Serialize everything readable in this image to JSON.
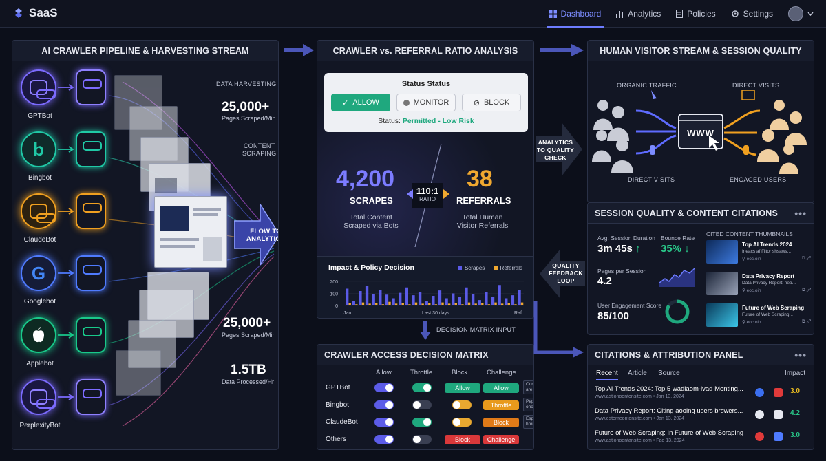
{
  "app": {
    "name": "SaaS"
  },
  "nav": [
    {
      "label": "Dashboard",
      "icon": "grid-icon"
    },
    {
      "label": "Analytics",
      "icon": "bar-chart-icon"
    },
    {
      "label": "Policies",
      "icon": "document-icon"
    },
    {
      "label": "Settings",
      "icon": "gear-icon"
    }
  ],
  "pipeline": {
    "title": "AI CRAWLER PIPELINE & HARVESTING STREAM",
    "bots": [
      {
        "name": "GPTBot",
        "color": "#7c6bff"
      },
      {
        "name": "Bingbot",
        "color": "#20c9a6"
      },
      {
        "name": "ClaudeBot",
        "color": "#f0a020"
      },
      {
        "name": "Googlebot",
        "color": "#4f7bff"
      },
      {
        "name": "Applebot",
        "color": "#19c98a"
      },
      {
        "name": "PerplexityBot",
        "color": "#7c6bff"
      }
    ],
    "tag_harvest": "DATA HARVESTING",
    "tag_scraping_1": "CONTENT",
    "tag_scraping_2": "SCRAPING",
    "stat1_value": "25,000+",
    "stat1_label": "Pages Scraped/Min",
    "stat2_value": "25,000+",
    "stat2_label": "Pages Scraped/Min",
    "stat3_value": "1.5TB",
    "stat3_label": "Data Processed/Hr",
    "flow_label_1": "FLOW TO",
    "flow_label_2": "ANALYTICS"
  },
  "ratio": {
    "title": "CRAWLER vs. REFERRAL RATIO ANALYSIS",
    "status_title": "Status Status",
    "buttons": [
      "ALLOW",
      "MONITOR",
      "BLOCK"
    ],
    "status_prefix": "Status:",
    "status_value": "Permitted - Low Risk",
    "scrapes_value": "4,200",
    "scrapes_label": "SCRAPES",
    "scrapes_caption_1": "Total Content",
    "scrapes_caption_2": "Scraped via Bots",
    "ratio_value": "110:1",
    "ratio_label": "RATIO",
    "referrals_value": "38",
    "referrals_label": "REFERRALS",
    "referrals_caption_1": "Total Human",
    "referrals_caption_2": "Visitor Referrals",
    "chart_title": "Impact & Policy Decision",
    "legend_scrapes": "Scrapes",
    "legend_referrals": "Referrals",
    "colors": {
      "scrapes": "#5b5be8",
      "referrals": "#f0a830"
    }
  },
  "chart_data": {
    "type": "bar",
    "title": "Impact & Policy Decision",
    "xlabel": "",
    "ylabel": "",
    "ylim": [
      0,
      200
    ],
    "yticks": [
      "200",
      "100",
      "0"
    ],
    "xticks": [
      "Jan",
      "Last 30 days",
      "Raf"
    ],
    "series": [
      {
        "name": "Scrapes",
        "values": [
          140,
          40,
          120,
          160,
          95,
          130,
          90,
          60,
          105,
          150,
          85,
          110,
          40,
          80,
          125,
          60,
          100,
          70,
          150,
          95,
          45,
          110,
          70,
          170,
          60,
          85,
          130
        ]
      },
      {
        "name": "Referrals",
        "values": [
          20,
          10,
          25,
          15,
          20,
          10,
          30,
          15,
          20,
          10,
          25,
          15,
          20,
          10,
          25,
          15,
          20,
          10,
          25,
          15,
          20,
          10,
          25,
          15,
          20,
          10,
          25
        ]
      }
    ]
  },
  "decision_label": "DECISION MATRIX INPUT",
  "analytics_label": [
    "ANALYTICS",
    "TO QUALITY",
    "CHECK"
  ],
  "feedback_label": [
    "QUALITY",
    "FEEDBACK",
    "LOOP"
  ],
  "matrix": {
    "title": "CRAWLER ACCESS DECISION MATRIX",
    "columns": [
      "Allow",
      "Throttle",
      "Block",
      "Challenge"
    ],
    "rows": [
      {
        "name": "GPTBot",
        "allow": true,
        "throttle": true,
        "block_label": "Allow",
        "block_color": "#1fa87e",
        "challenge_label": "Allow",
        "challenge_color": "#1fa87e",
        "note": "Current policies to are evable the rules"
      },
      {
        "name": "Bingbot",
        "allow": true,
        "throttle": false,
        "block_label": "",
        "block_color": "",
        "challenge_label": "Throttle",
        "challenge_color": "#e89a1c",
        "note": "Pepben siads to onomote the rules"
      },
      {
        "name": "ClaudeBot",
        "allow": true,
        "throttle": true,
        "block_label": "",
        "block_color": "",
        "challenge_label": "Block",
        "challenge_color": "#e07a18",
        "note": "Esplac slem lockips hrononlser rules"
      },
      {
        "name": "Others",
        "allow": true,
        "throttle": false,
        "block_label": "Block",
        "block_color": "#d9383a",
        "challenge_label": "Challenge",
        "challenge_color": "#d9383a",
        "note": ""
      }
    ]
  },
  "visitor": {
    "title": "HUMAN VISITOR STREAM & SESSION QUALITY",
    "organic": "ORGANIC TRAFFIC",
    "direct_top": "DIRECT VISITS",
    "direct_bottom": "DIRECT VISITS",
    "engaged": "ENGAGED USERS",
    "www": "WWW"
  },
  "session": {
    "title": "SESSION QUALITY & CONTENT CITATIONS",
    "avg_label": "Avg. Session Duration",
    "avg_value": "3m 45s",
    "bounce_label": "Bounce Rate",
    "bounce_value": "35%",
    "pages_label": "Pages per Session",
    "pages_value": "4.2",
    "engage_label": "User Engagement Score",
    "engage_value": "85/100",
    "engage_fraction": 0.85,
    "cited_title": "CITED CONTENT THUMBNAILS",
    "cited": [
      {
        "title": "Top AI Trends 2024",
        "sub": "Ineacs af ffiitor shsaws...",
        "link": "eoc.oin"
      },
      {
        "title": "Data Privacy Report",
        "sub": "Data Privacy Report: nea...",
        "link": "eoc.oin"
      },
      {
        "title": "Future of Web Scraping",
        "sub": "Future of Web Scraping...",
        "link": "eoc.oin"
      }
    ]
  },
  "citations": {
    "title": "CITATIONS & ATTRIBUTION PANEL",
    "tabs": [
      "Recent",
      "Article",
      "Source"
    ],
    "impact_label": "Impact",
    "rows": [
      {
        "title": "Top AI Trends 2024: Top 5 wadiaom-lvad Menting...",
        "sub": "www.astionoontonsite.com • Jan 13, 2024",
        "impact": "3.0",
        "impact_color": "#f0c020"
      },
      {
        "title": "Data Privacy Report: Citing aooing users brswers...",
        "sub": "www.estemeontonsite.com • Jan 13, 2024",
        "impact": "4.2",
        "impact_color": "#29c98a"
      },
      {
        "title": "Future of Web Scraping: In Future of Web Scraping",
        "sub": "www.astionoentansite.com • Fao 13, 2024",
        "impact": "3.0",
        "impact_color": "#29c98a"
      }
    ]
  }
}
